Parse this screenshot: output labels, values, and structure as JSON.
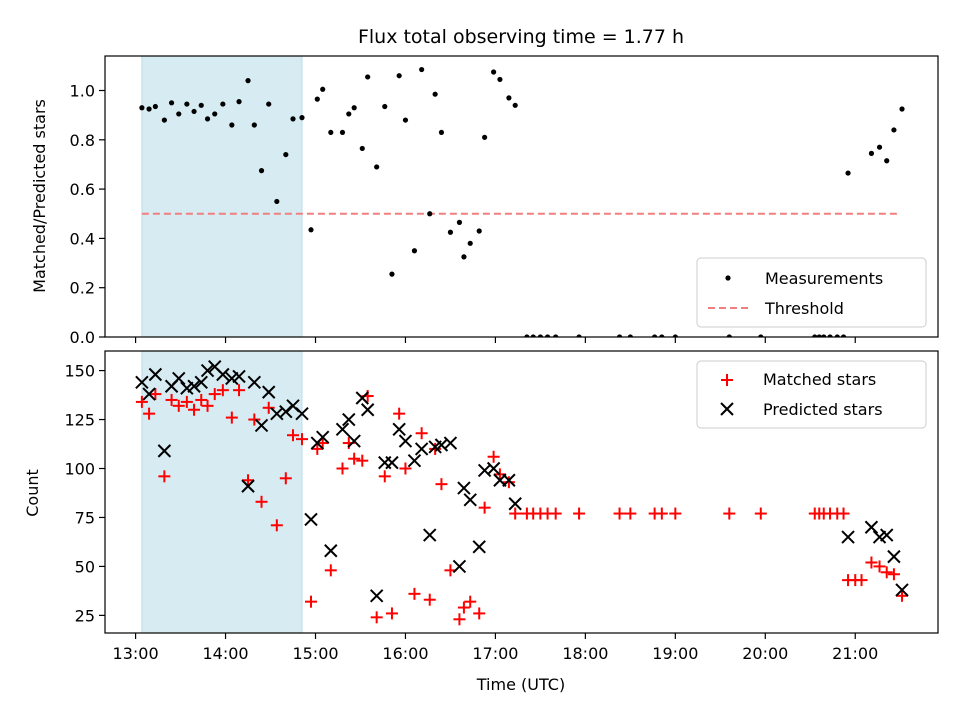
{
  "chart_data": [
    {
      "type": "scatter",
      "title": "Flux total observing time = 1.77 h",
      "ylabel": "Matched/Predicted stars",
      "xlabel": "",
      "xlim": [
        12.66,
        21.92
      ],
      "ylim": [
        0,
        1.14
      ],
      "x_tick_values": [
        13,
        14,
        15,
        16,
        17,
        18,
        19,
        20,
        21
      ],
      "y_ticks": [
        {
          "value": 0.0,
          "label": "0.0"
        },
        {
          "value": 0.2,
          "label": "0.2"
        },
        {
          "value": 0.4,
          "label": "0.4"
        },
        {
          "value": 0.6,
          "label": "0.6"
        },
        {
          "value": 0.8,
          "label": "0.8"
        },
        {
          "value": 1.0,
          "label": "1.0"
        }
      ],
      "shaded_span": {
        "x_start": 13.07,
        "x_end": 14.85,
        "color": "#add8e6"
      },
      "threshold": {
        "value": 0.5,
        "x_start": 13.07,
        "x_end": 21.5,
        "color": "#f08080"
      },
      "legend": {
        "placement": "lower-right",
        "entries": [
          "Measurements",
          "Threshold"
        ]
      },
      "series": [
        {
          "name": "Measurements",
          "color": "#000000",
          "marker": "dot",
          "points": [
            [
              13.07,
              0.93
            ],
            [
              13.15,
              0.925
            ],
            [
              13.22,
              0.935
            ],
            [
              13.32,
              0.88
            ],
            [
              13.4,
              0.95
            ],
            [
              13.48,
              0.905
            ],
            [
              13.57,
              0.945
            ],
            [
              13.65,
              0.915
            ],
            [
              13.73,
              0.94
            ],
            [
              13.8,
              0.885
            ],
            [
              13.88,
              0.905
            ],
            [
              13.97,
              0.945
            ],
            [
              14.07,
              0.86
            ],
            [
              14.15,
              0.955
            ],
            [
              14.25,
              1.04
            ],
            [
              14.32,
              0.86
            ],
            [
              14.4,
              0.675
            ],
            [
              14.48,
              0.945
            ],
            [
              14.57,
              0.55
            ],
            [
              14.67,
              0.74
            ],
            [
              14.75,
              0.885
            ],
            [
              14.85,
              0.89
            ],
            [
              14.95,
              0.435
            ],
            [
              15.02,
              0.965
            ],
            [
              15.08,
              1.005
            ],
            [
              15.17,
              0.83
            ],
            [
              15.3,
              0.83
            ],
            [
              15.37,
              0.905
            ],
            [
              15.43,
              0.93
            ],
            [
              15.52,
              0.765
            ],
            [
              15.58,
              1.055
            ],
            [
              15.68,
              0.69
            ],
            [
              15.77,
              0.935
            ],
            [
              15.85,
              0.255
            ],
            [
              15.93,
              1.06
            ],
            [
              16.0,
              0.88
            ],
            [
              16.1,
              0.35
            ],
            [
              16.18,
              1.085
            ],
            [
              16.27,
              0.5
            ],
            [
              16.33,
              0.985
            ],
            [
              16.4,
              0.83
            ],
            [
              16.5,
              0.425
            ],
            [
              16.6,
              0.465
            ],
            [
              16.65,
              0.325
            ],
            [
              16.72,
              0.38
            ],
            [
              16.82,
              0.43
            ],
            [
              16.88,
              0.81
            ],
            [
              16.98,
              1.075
            ],
            [
              17.05,
              1.045
            ],
            [
              17.15,
              0.97
            ],
            [
              17.22,
              0.94
            ],
            [
              17.35,
              0.0
            ],
            [
              17.42,
              0.0
            ],
            [
              17.5,
              0.0
            ],
            [
              17.58,
              0.0
            ],
            [
              17.67,
              0.0
            ],
            [
              17.93,
              0.0
            ],
            [
              18.38,
              0.0
            ],
            [
              18.5,
              0.0
            ],
            [
              18.77,
              0.0
            ],
            [
              18.85,
              0.0
            ],
            [
              19.0,
              0.0
            ],
            [
              19.6,
              0.0
            ],
            [
              19.95,
              0.0
            ],
            [
              20.55,
              0.0
            ],
            [
              20.6,
              0.0
            ],
            [
              20.65,
              0.0
            ],
            [
              20.72,
              0.0
            ],
            [
              20.8,
              0.0
            ],
            [
              20.87,
              0.0
            ],
            [
              20.92,
              0.665
            ],
            [
              21.18,
              0.745
            ],
            [
              21.27,
              0.77
            ],
            [
              21.35,
              0.715
            ],
            [
              21.43,
              0.84
            ],
            [
              21.52,
              0.925
            ]
          ]
        }
      ]
    },
    {
      "type": "scatter",
      "title": "",
      "ylabel": "Count",
      "xlabel": "Time (UTC)",
      "xlim": [
        12.66,
        21.92
      ],
      "ylim": [
        16,
        160
      ],
      "x_ticks": [
        {
          "value": 13,
          "label": "13:00"
        },
        {
          "value": 14,
          "label": "14:00"
        },
        {
          "value": 15,
          "label": "15:00"
        },
        {
          "value": 16,
          "label": "16:00"
        },
        {
          "value": 17,
          "label": "17:00"
        },
        {
          "value": 18,
          "label": "18:00"
        },
        {
          "value": 19,
          "label": "19:00"
        },
        {
          "value": 20,
          "label": "20:00"
        },
        {
          "value": 21,
          "label": "21:00"
        }
      ],
      "y_ticks": [
        {
          "value": 25,
          "label": "25"
        },
        {
          "value": 50,
          "label": "50"
        },
        {
          "value": 75,
          "label": "75"
        },
        {
          "value": 100,
          "label": "100"
        },
        {
          "value": 125,
          "label": "125"
        },
        {
          "value": 150,
          "label": "150"
        }
      ],
      "shaded_span": {
        "x_start": 13.07,
        "x_end": 14.85,
        "color": "#add8e6"
      },
      "legend": {
        "placement": "upper-right",
        "entries": [
          "Matched stars",
          "Predicted stars"
        ]
      },
      "series": [
        {
          "name": "Matched stars",
          "color": "#ff0000",
          "marker": "plus",
          "points": [
            [
              13.07,
              134
            ],
            [
              13.15,
              128
            ],
            [
              13.22,
              138
            ],
            [
              13.32,
              96
            ],
            [
              13.4,
              135
            ],
            [
              13.48,
              132
            ],
            [
              13.57,
              134
            ],
            [
              13.65,
              130
            ],
            [
              13.73,
              135
            ],
            [
              13.8,
              132
            ],
            [
              13.88,
              138
            ],
            [
              13.97,
              140
            ],
            [
              14.07,
              126
            ],
            [
              14.15,
              140
            ],
            [
              14.25,
              94
            ],
            [
              14.32,
              125
            ],
            [
              14.4,
              83
            ],
            [
              14.48,
              131
            ],
            [
              14.57,
              71
            ],
            [
              14.67,
              95
            ],
            [
              14.75,
              117
            ],
            [
              14.85,
              115
            ],
            [
              14.95,
              32
            ],
            [
              15.02,
              110
            ],
            [
              15.08,
              113
            ],
            [
              15.17,
              48
            ],
            [
              15.3,
              100
            ],
            [
              15.37,
              113
            ],
            [
              15.43,
              105
            ],
            [
              15.52,
              104
            ],
            [
              15.58,
              137
            ],
            [
              15.68,
              24
            ],
            [
              15.77,
              96
            ],
            [
              15.85,
              26
            ],
            [
              15.93,
              128
            ],
            [
              16.0,
              100
            ],
            [
              16.1,
              36
            ],
            [
              16.18,
              118
            ],
            [
              16.27,
              33
            ],
            [
              16.33,
              110
            ],
            [
              16.4,
              92
            ],
            [
              16.5,
              48
            ],
            [
              16.6,
              23
            ],
            [
              16.65,
              29
            ],
            [
              16.72,
              32
            ],
            [
              16.82,
              26
            ],
            [
              16.88,
              80
            ],
            [
              16.98,
              106
            ],
            [
              17.05,
              97
            ],
            [
              17.15,
              93
            ],
            [
              17.22,
              77
            ],
            [
              17.35,
              77
            ],
            [
              17.42,
              77
            ],
            [
              17.5,
              77
            ],
            [
              17.58,
              77
            ],
            [
              17.67,
              77
            ],
            [
              17.93,
              77
            ],
            [
              18.38,
              77
            ],
            [
              18.5,
              77
            ],
            [
              18.77,
              77
            ],
            [
              18.85,
              77
            ],
            [
              19.0,
              77
            ],
            [
              19.6,
              77
            ],
            [
              19.95,
              77
            ],
            [
              20.55,
              77
            ],
            [
              20.6,
              77
            ],
            [
              20.65,
              77
            ],
            [
              20.72,
              77
            ],
            [
              20.8,
              77
            ],
            [
              20.87,
              77
            ],
            [
              20.92,
              43
            ],
            [
              21.0,
              43
            ],
            [
              21.07,
              43
            ],
            [
              21.18,
              52
            ],
            [
              21.27,
              50
            ],
            [
              21.35,
              47
            ],
            [
              21.43,
              46
            ],
            [
              21.52,
              35
            ]
          ]
        },
        {
          "name": "Predicted stars",
          "color": "#000000",
          "marker": "x",
          "points": [
            [
              13.07,
              144
            ],
            [
              13.15,
              138
            ],
            [
              13.22,
              148
            ],
            [
              13.32,
              109
            ],
            [
              13.4,
              142
            ],
            [
              13.48,
              146
            ],
            [
              13.57,
              141
            ],
            [
              13.65,
              142
            ],
            [
              13.73,
              144
            ],
            [
              13.8,
              150
            ],
            [
              13.88,
              152
            ],
            [
              13.97,
              148
            ],
            [
              14.07,
              146
            ],
            [
              14.15,
              147
            ],
            [
              14.25,
              91
            ],
            [
              14.32,
              144
            ],
            [
              14.4,
              122
            ],
            [
              14.48,
              139
            ],
            [
              14.57,
              128
            ],
            [
              14.67,
              129
            ],
            [
              14.75,
              132
            ],
            [
              14.85,
              128
            ],
            [
              14.95,
              74
            ],
            [
              15.02,
              113
            ],
            [
              15.08,
              116
            ],
            [
              15.17,
              58
            ],
            [
              15.3,
              120
            ],
            [
              15.37,
              125
            ],
            [
              15.43,
              114
            ],
            [
              15.52,
              136
            ],
            [
              15.58,
              130
            ],
            [
              15.68,
              35
            ],
            [
              15.77,
              103
            ],
            [
              15.85,
              103
            ],
            [
              15.93,
              120
            ],
            [
              16.0,
              114
            ],
            [
              16.1,
              104
            ],
            [
              16.18,
              110
            ],
            [
              16.27,
              66
            ],
            [
              16.33,
              111
            ],
            [
              16.4,
              112
            ],
            [
              16.5,
              113
            ],
            [
              16.6,
              50
            ],
            [
              16.65,
              90
            ],
            [
              16.72,
              84
            ],
            [
              16.82,
              60
            ],
            [
              16.88,
              99
            ],
            [
              16.98,
              100
            ],
            [
              17.05,
              94
            ],
            [
              17.15,
              94
            ],
            [
              17.22,
              82
            ],
            [
              20.92,
              65
            ],
            [
              21.18,
              70
            ],
            [
              21.27,
              65
            ],
            [
              21.35,
              66
            ],
            [
              21.43,
              55
            ],
            [
              21.52,
              38
            ]
          ]
        }
      ]
    }
  ]
}
